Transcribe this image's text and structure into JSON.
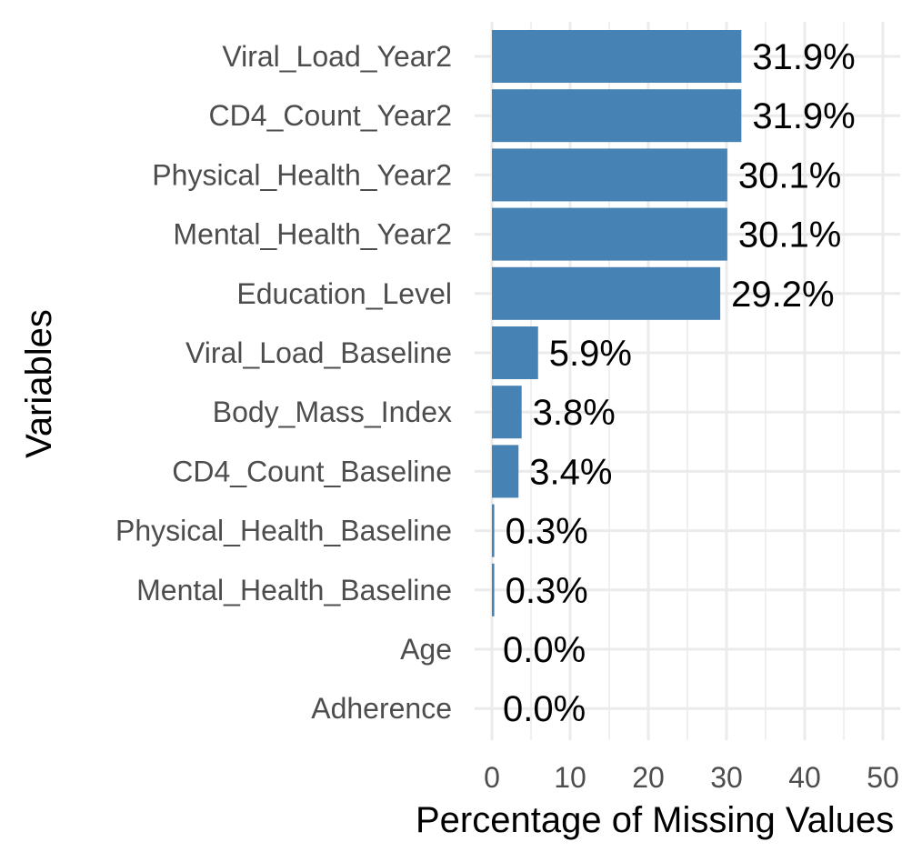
{
  "chart_data": {
    "type": "bar",
    "orientation": "horizontal",
    "categories": [
      "Viral_Load_Year2",
      "CD4_Count_Year2",
      "Physical_Health_Year2",
      "Mental_Health_Year2",
      "Education_Level",
      "Viral_Load_Baseline",
      "Body_Mass_Index",
      "CD4_Count_Baseline",
      "Physical_Health_Baseline",
      "Mental_Health_Baseline",
      "Age",
      "Adherence"
    ],
    "values": [
      31.9,
      31.9,
      30.1,
      30.1,
      29.2,
      5.9,
      3.8,
      3.4,
      0.3,
      0.3,
      0.0,
      0.0
    ],
    "data_labels": [
      "31.9%",
      "31.9%",
      "30.1%",
      "30.1%",
      "29.2%",
      "5.9%",
      "3.8%",
      "3.4%",
      "0.3%",
      "0.3%",
      "0.0%",
      "0.0%"
    ],
    "xlabel": "Percentage of Missing Values",
    "ylabel": "Variables",
    "xlim": [
      0,
      50
    ],
    "xticks": [
      0,
      10,
      20,
      30,
      40,
      50
    ],
    "grid": true,
    "bar_color": "#4682b4",
    "grid_color": "#ebebeb"
  }
}
